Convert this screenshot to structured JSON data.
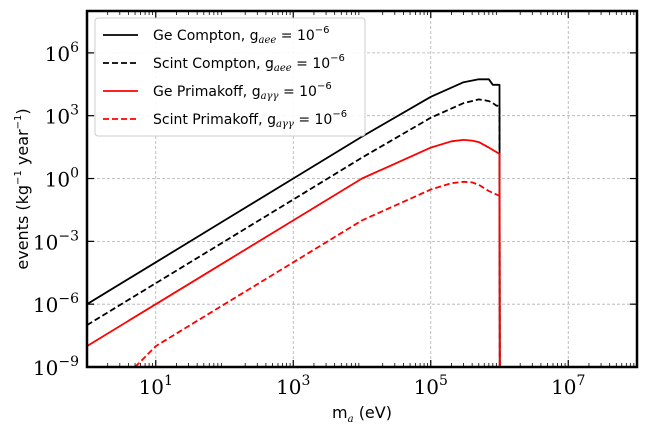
{
  "chart_data": {
    "type": "line",
    "xlabel": "m",
    "xlabel_sub": "a",
    "xlabel_unit": "(eV)",
    "ylabel": "events (kg",
    "ylabel_exp1": "−1",
    "ylabel_mid": " year",
    "ylabel_exp2": "−1",
    "ylabel_end": ")",
    "xscale": "log",
    "yscale": "log",
    "xlim": [
      1,
      100000000.0
    ],
    "ylim": [
      1e-09,
      100000000.0
    ],
    "grid": true,
    "legend_placement": "top-left",
    "x_ticks": [
      {
        "base": "10",
        "exp": "1",
        "value": 10
      },
      {
        "base": "10",
        "exp": "3",
        "value": 1000
      },
      {
        "base": "10",
        "exp": "5",
        "value": 100000
      },
      {
        "base": "10",
        "exp": "7",
        "value": 10000000
      }
    ],
    "y_ticks": [
      {
        "base": "10",
        "exp": "−9",
        "value": 1e-09
      },
      {
        "base": "10",
        "exp": "−6",
        "value": 1e-06
      },
      {
        "base": "10",
        "exp": "−3",
        "value": 0.001
      },
      {
        "base": "10",
        "exp": "0",
        "value": 1
      },
      {
        "base": "10",
        "exp": "3",
        "value": 1000
      },
      {
        "base": "10",
        "exp": "6",
        "value": 1000000
      }
    ],
    "series": [
      {
        "name": "Ge Compton, g",
        "coupling_sub": "aee",
        "coupling_val": " = 10",
        "coupling_exp": "−6",
        "color": "#000000",
        "dashed": false,
        "x": [
          1,
          10,
          100,
          1000,
          10000,
          100000,
          300000,
          500000,
          700000,
          800000,
          900000,
          1000000,
          1010000
        ],
        "y": [
          1e-06,
          0.0001,
          0.01,
          1,
          100,
          8000,
          40000,
          55000,
          55000,
          30000,
          30000,
          30000,
          1e-09
        ]
      },
      {
        "name": "Scint Compton, g",
        "coupling_sub": "aee",
        "coupling_val": " = 10",
        "coupling_exp": "−6",
        "color": "#000000",
        "dashed": true,
        "x": [
          1,
          10,
          100,
          1000,
          10000,
          100000,
          300000,
          500000,
          600000,
          700000,
          800000,
          900000,
          1000000,
          1010000
        ],
        "y": [
          1e-07,
          1e-05,
          0.001,
          0.1,
          10,
          800,
          4000,
          6000,
          5500,
          5000,
          4000,
          3000,
          3000,
          1e-09
        ]
      },
      {
        "name": "Ge Primakoff, g",
        "coupling_sub": "aγγ",
        "coupling_val": " = 10",
        "coupling_exp": "−6",
        "color": "#ff0000",
        "dashed": false,
        "x": [
          1,
          10,
          100,
          1000,
          10000,
          100000,
          200000,
          300000,
          400000,
          500000,
          700000,
          1000000,
          1010000
        ],
        "y": [
          1e-08,
          1e-06,
          0.0001,
          0.01,
          1,
          30,
          60,
          70,
          65,
          55,
          30,
          15,
          1e-09
        ]
      },
      {
        "name": "Scint Primakoff, g",
        "coupling_sub": "aγγ",
        "coupling_val": " = 10",
        "coupling_exp": "−6",
        "color": "#ff0000",
        "dashed": true,
        "x": [
          5,
          10,
          100,
          1000,
          10000,
          100000,
          200000,
          300000,
          400000,
          500000,
          700000,
          1000000,
          1010000
        ],
        "y": [
          1e-09,
          1e-08,
          1e-06,
          0.0001,
          0.01,
          0.3,
          0.6,
          0.7,
          0.65,
          0.5,
          0.25,
          0.15,
          1e-09
        ]
      }
    ]
  }
}
